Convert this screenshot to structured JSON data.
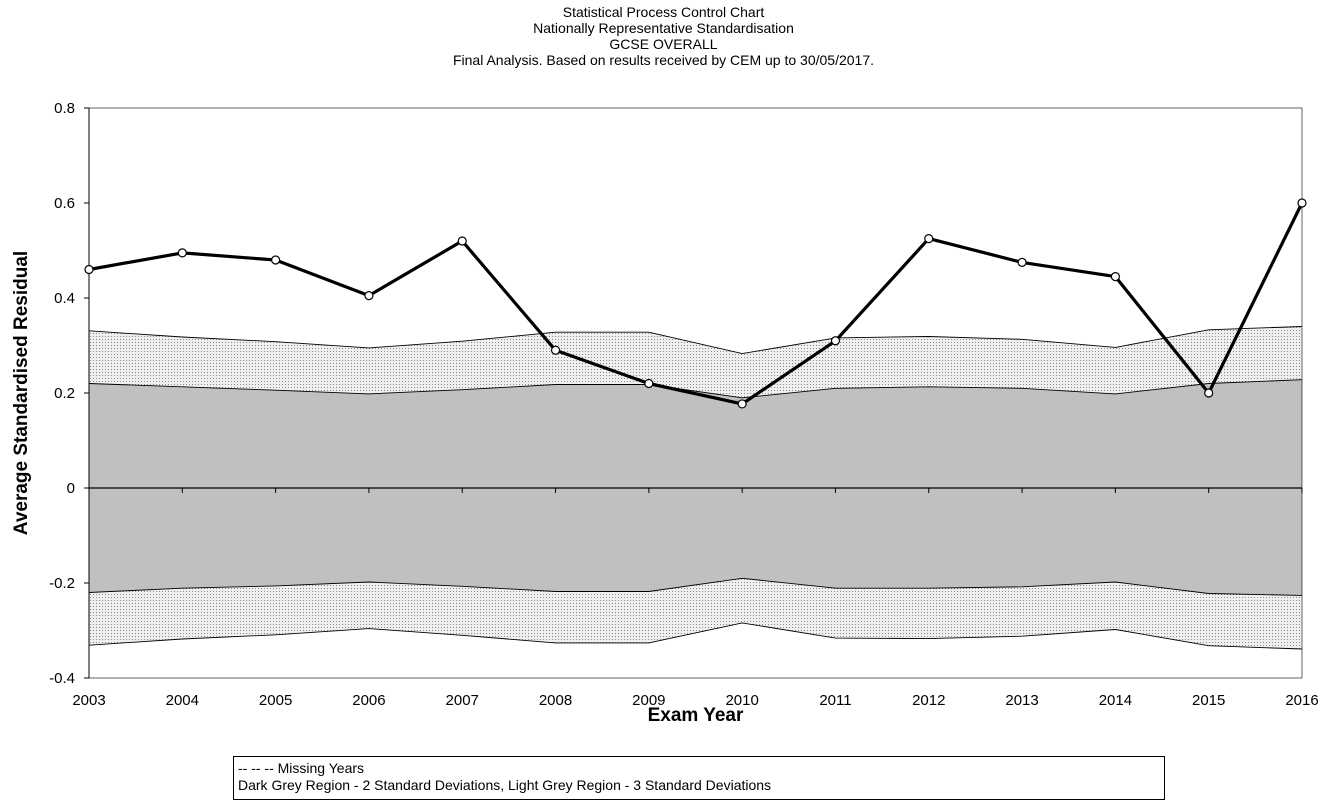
{
  "chart_data": {
    "type": "line",
    "title": "Statistical Process Control Chart",
    "subtitles": [
      "Nationally Representative Standardisation",
      "GCSE OVERALL",
      "Final Analysis. Based on results received by CEM up to 30/05/2017."
    ],
    "xlabel": "Exam Year",
    "ylabel": "Average Standardised Residual",
    "x": [
      2003,
      2004,
      2005,
      2006,
      2007,
      2008,
      2009,
      2010,
      2011,
      2012,
      2013,
      2014,
      2015,
      2016
    ],
    "xlim": [
      2003,
      2016
    ],
    "ylim": [
      -0.4,
      0.8
    ],
    "y_ticks": [
      {
        "value": 0.8,
        "label": "0.8"
      },
      {
        "value": 0.6,
        "label": "0.6"
      },
      {
        "value": 0.4,
        "label": "0.4"
      },
      {
        "value": 0.2,
        "label": "0.2"
      },
      {
        "value": 0,
        "label": "0"
      },
      {
        "value": -0.2,
        "label": "-0.2"
      },
      {
        "value": -0.4,
        "label": "-0.4"
      }
    ],
    "series": [
      {
        "values": [
          0.46,
          0.495,
          0.48,
          0.405,
          0.52,
          0.29,
          0.22,
          0.177,
          0.31,
          0.525,
          0.475,
          0.445,
          0.2,
          0.6
        ]
      }
    ],
    "bands": {
      "sd2_upper": [
        0.22,
        0.213,
        0.206,
        0.198,
        0.207,
        0.218,
        0.218,
        0.19,
        0.21,
        0.213,
        0.21,
        0.198,
        0.22,
        0.228
      ],
      "sd2_lower": [
        -0.22,
        -0.211,
        -0.206,
        -0.198,
        -0.207,
        -0.218,
        -0.218,
        -0.19,
        -0.211,
        -0.211,
        -0.208,
        -0.198,
        -0.222,
        -0.226
      ],
      "sd3_upper": [
        0.331,
        0.318,
        0.308,
        0.295,
        0.309,
        0.328,
        0.328,
        0.283,
        0.316,
        0.319,
        0.313,
        0.296,
        0.333,
        0.34
      ],
      "sd3_lower": [
        -0.331,
        -0.318,
        -0.309,
        -0.296,
        -0.31,
        -0.326,
        -0.326,
        -0.284,
        -0.316,
        -0.317,
        -0.312,
        -0.298,
        -0.332,
        -0.339
      ]
    },
    "colors": {
      "line": "#000000",
      "marker_fill": "#ffffff",
      "sd2_fill": "#c0c0c0",
      "sd3_fill": "#e6e6e6",
      "band_edge": "#000000"
    },
    "grid": false,
    "legend_position": "bottom",
    "legend": [
      "-- -- -- Missing Years",
      "Dark Grey Region - 2 Standard Deviations, Light Grey Region - 3 Standard Deviations"
    ]
  }
}
